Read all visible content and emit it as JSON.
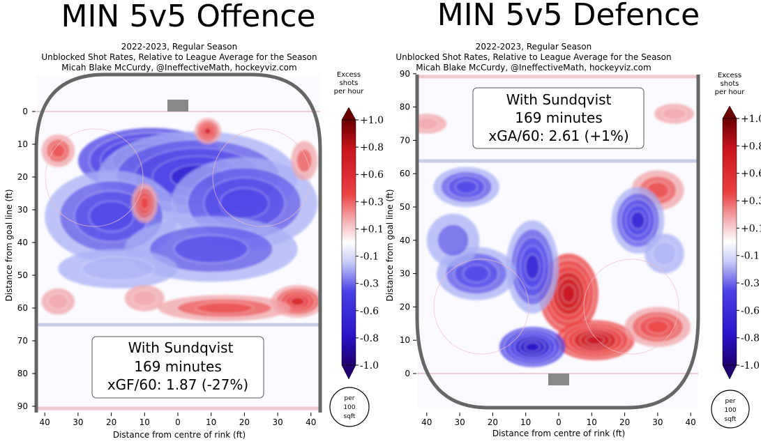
{
  "colors": {
    "strong_blue": "#2a14c8",
    "mid_blue": "#4a40e6",
    "light_blue": "#a8b0f4",
    "pale_blue": "#cdd0f6",
    "strong_red": "#c8141e",
    "mid_red": "#ea4040",
    "light_red": "#f0a4a8",
    "rink_border": "#666666",
    "blue_line": "#c8cce8",
    "red_line": "#f0c8d0",
    "rink_bg": "#fbfbff"
  },
  "chart_data": [
    {
      "type": "heatmap",
      "id": "offence",
      "title": "MIN 5v5 Offence",
      "subtitle": [
        "2022-2023, Regular Season",
        "Unblocked Shot Rates, Relative to League Average for the Season",
        "Micah Blake McCurdy, @IneffectiveMath, hockeyviz.com"
      ],
      "xlabel": "Distance from centre of rink (ft)",
      "ylabel": "Distance from goal line (ft)",
      "xticks": [
        40,
        30,
        20,
        10,
        0,
        10,
        20,
        30,
        40
      ],
      "yticks": [
        "0",
        "10",
        "20",
        "30",
        "40",
        "50",
        "60",
        "70",
        "80",
        "90"
      ],
      "goal_at": "top",
      "box": {
        "line1": "With Sundqvist",
        "line2": "169 minutes",
        "line3": "xGF/60: 1.87 (-27%)"
      },
      "colorbar_title": [
        "Excess",
        "shots",
        "per hour"
      ],
      "colorbar_labels": [
        "+1.0",
        "+0.8",
        "+0.6",
        "+0.3",
        "+0.1",
        "-0.1",
        "-0.3",
        "-0.6",
        "-0.8",
        "-1.0"
      ],
      "per_label": [
        "per",
        "100",
        "sqft"
      ],
      "blobs": [
        {
          "x": -8,
          "y": 15,
          "v": -1.0,
          "rx": 22,
          "ry": 10
        },
        {
          "x": 6,
          "y": 20,
          "v": -0.8,
          "rx": 30,
          "ry": 14
        },
        {
          "x": 20,
          "y": 28,
          "v": -0.7,
          "rx": 22,
          "ry": 14
        },
        {
          "x": -20,
          "y": 32,
          "v": -0.6,
          "rx": 20,
          "ry": 14
        },
        {
          "x": 10,
          "y": 42,
          "v": -0.5,
          "rx": 26,
          "ry": 10
        },
        {
          "x": -18,
          "y": 48,
          "v": -0.3,
          "rx": 18,
          "ry": 6
        },
        {
          "x": 9,
          "y": 6,
          "v": 0.8,
          "rx": 4,
          "ry": 4
        },
        {
          "x": -10,
          "y": 28,
          "v": 0.6,
          "rx": 4,
          "ry": 6
        },
        {
          "x": -36,
          "y": 12,
          "v": 0.5,
          "rx": 5,
          "ry": 5
        },
        {
          "x": 38,
          "y": 15,
          "v": 0.4,
          "rx": 4,
          "ry": 6
        },
        {
          "x": 36,
          "y": 58,
          "v": 0.8,
          "rx": 8,
          "ry": 5
        },
        {
          "x": 14,
          "y": 60,
          "v": 0.5,
          "rx": 20,
          "ry": 4
        },
        {
          "x": -36,
          "y": 58,
          "v": 0.3,
          "rx": 5,
          "ry": 4
        },
        {
          "x": -10,
          "y": 57,
          "v": 0.2,
          "rx": 6,
          "ry": 4
        }
      ]
    },
    {
      "type": "heatmap",
      "id": "defence",
      "title": "MIN 5v5 Defence",
      "subtitle": [
        "2022-2023, Regular Season",
        "Unblocked Shot Rates, Relative to League Average for the Season",
        "Micah Blake McCurdy, @IneffectiveMath, hockeyviz.com"
      ],
      "xlabel": "Distance from centre of rink (ft)",
      "ylabel": "Distance from goal line (ft)",
      "xticks": [
        40,
        30,
        20,
        10,
        0,
        10,
        20,
        30,
        40
      ],
      "yticks": [
        "0",
        "10",
        "20",
        "30",
        "40",
        "50",
        "60",
        "70",
        "80",
        "90"
      ],
      "goal_at": "bottom",
      "box": {
        "line1": "With Sundqvist",
        "line2": "169 minutes",
        "line3": "xGA/60: 2.61 (+1%)"
      },
      "colorbar_title": [
        "Excess",
        "shots",
        "per hour"
      ],
      "colorbar_labels": [
        "+1.0",
        "+0.8",
        "+0.6",
        "+0.3",
        "+0.1",
        "-0.1",
        "-0.3",
        "-0.6",
        "-0.8",
        "-1.0"
      ],
      "per_label": [
        "per",
        "100",
        "sqft"
      ],
      "blobs": [
        {
          "x": 3,
          "y": 24,
          "v": 1.0,
          "rx": 9,
          "ry": 12
        },
        {
          "x": 11,
          "y": 10,
          "v": 1.0,
          "rx": 12,
          "ry": 6
        },
        {
          "x": 30,
          "y": 14,
          "v": 0.6,
          "rx": 10,
          "ry": 6
        },
        {
          "x": 30,
          "y": 55,
          "v": 0.5,
          "rx": 8,
          "ry": 6
        },
        {
          "x": 35,
          "y": 78,
          "v": 0.3,
          "rx": 6,
          "ry": 3
        },
        {
          "x": -40,
          "y": 75,
          "v": 0.3,
          "rx": 6,
          "ry": 3
        },
        {
          "x": -8,
          "y": 8,
          "v": -1.0,
          "rx": 10,
          "ry": 6
        },
        {
          "x": 24,
          "y": 46,
          "v": -0.8,
          "rx": 8,
          "ry": 10
        },
        {
          "x": -8,
          "y": 32,
          "v": -0.8,
          "rx": 8,
          "ry": 14
        },
        {
          "x": -25,
          "y": 30,
          "v": -0.7,
          "rx": 12,
          "ry": 8
        },
        {
          "x": -28,
          "y": 56,
          "v": -0.6,
          "rx": 10,
          "ry": 6
        },
        {
          "x": -32,
          "y": 40,
          "v": -0.4,
          "rx": 8,
          "ry": 8
        },
        {
          "x": 32,
          "y": 36,
          "v": -0.3,
          "rx": 6,
          "ry": 6
        }
      ]
    }
  ]
}
